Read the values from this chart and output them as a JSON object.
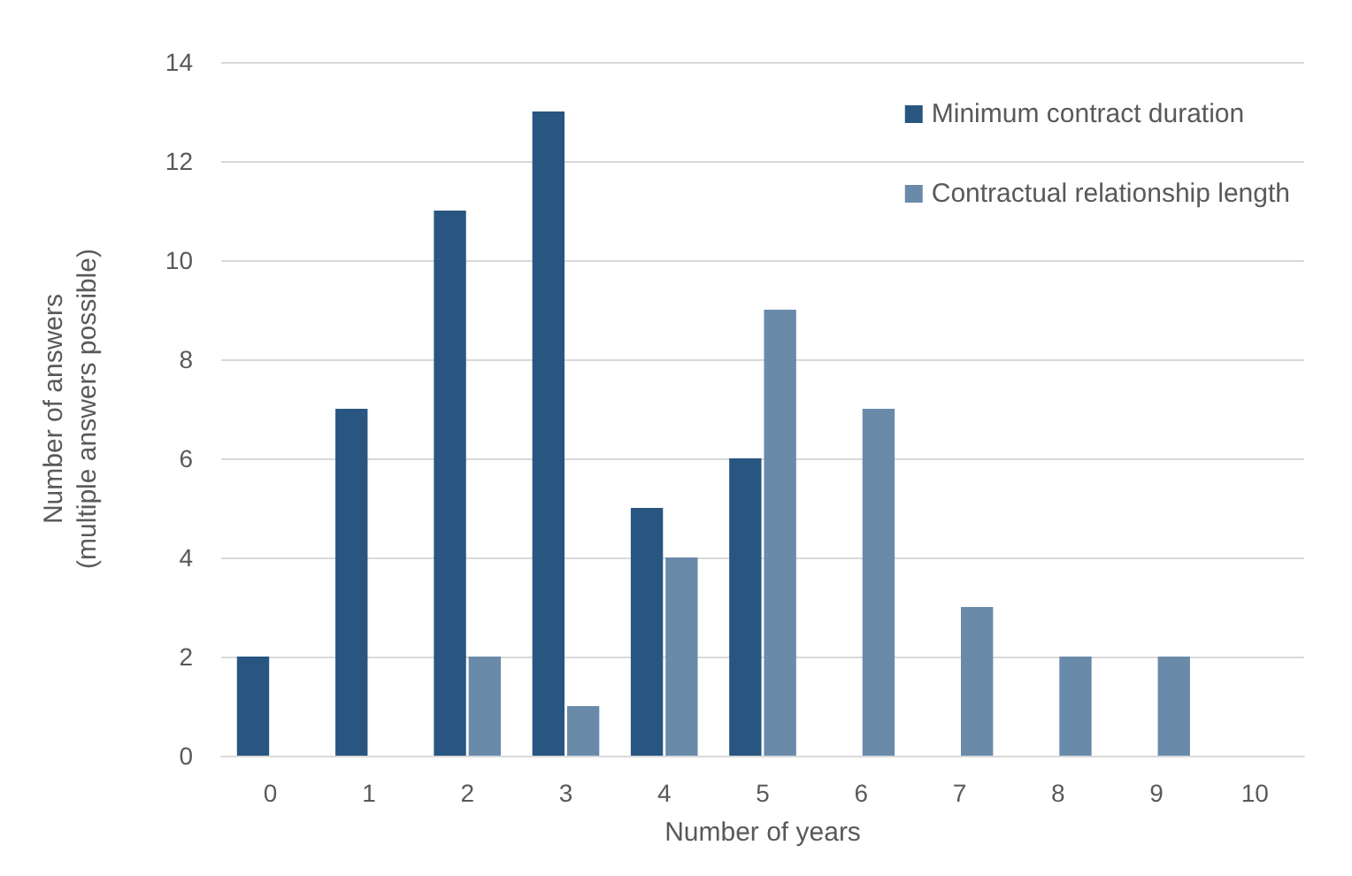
{
  "chart_data": {
    "type": "bar",
    "xlabel": "Number of years",
    "ylabel": "Number of answers\n(multiple answers possible)",
    "categories": [
      "0",
      "1",
      "2",
      "3",
      "4",
      "5",
      "6",
      "7",
      "8",
      "9",
      "10"
    ],
    "series": [
      {
        "name": "Minimum contract duration",
        "color": "#285680",
        "values": [
          2,
          7,
          11,
          13,
          5,
          6,
          null,
          null,
          null,
          null,
          null
        ]
      },
      {
        "name": "Contractual relationship length",
        "color": "#6a8aaa",
        "values": [
          null,
          null,
          2,
          1,
          4,
          9,
          7,
          3,
          2,
          2,
          null
        ]
      }
    ],
    "ylim": [
      0,
      14
    ],
    "yticks": [
      0,
      2,
      4,
      6,
      8,
      10,
      12,
      14
    ],
    "grid": "y",
    "legend": "top right"
  }
}
